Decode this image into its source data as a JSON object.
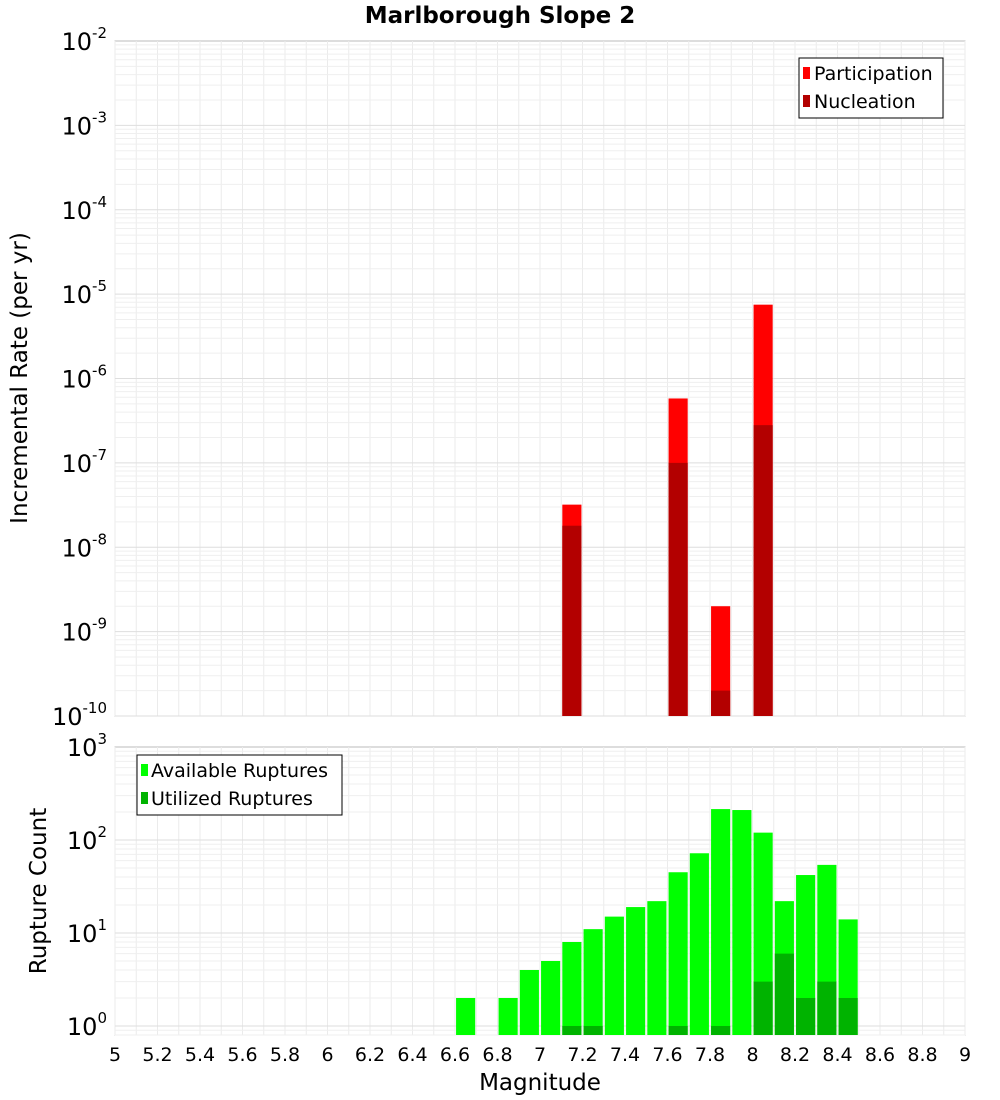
{
  "chart_data": [
    {
      "type": "bar",
      "title": "Marlborough Slope 2",
      "ylabel": "Incremental Rate (per yr)",
      "xlabel": "",
      "xlim": [
        5,
        9
      ],
      "ylim": [
        1e-10,
        0.01
      ],
      "yscale": "log",
      "ytick_exponents": [
        -10,
        -9,
        -8,
        -7,
        -6,
        -5,
        -4,
        -3,
        -2
      ],
      "grid": true,
      "legend_position": "top-right",
      "bar_width": 0.09,
      "series": [
        {
          "name": "Participation",
          "color": "#ff0000",
          "x": [
            7.15,
            7.65,
            7.85,
            8.05
          ],
          "values": [
            3.2e-08,
            5.8e-07,
            2e-09,
            7.5e-06
          ]
        },
        {
          "name": "Nucleation",
          "color": "#b30000",
          "x": [
            7.15,
            7.65,
            7.85,
            8.05
          ],
          "values": [
            1.8e-08,
            1e-07,
            2e-10,
            2.8e-07
          ]
        }
      ]
    },
    {
      "type": "bar",
      "title": "",
      "ylabel": "Rupture Count",
      "xlabel": "Magnitude",
      "xlim": [
        5,
        9
      ],
      "ylim": [
        0.8,
        1000
      ],
      "yscale": "log",
      "ytick_exponents": [
        0,
        1,
        2,
        3
      ],
      "xticks": [
        "5",
        "5.2",
        "5.4",
        "5.6",
        "5.8",
        "6",
        "6.2",
        "6.4",
        "6.6",
        "6.8",
        "7",
        "7.2",
        "7.4",
        "7.6",
        "7.8",
        "8",
        "8.2",
        "8.4",
        "8.6",
        "8.8",
        "9"
      ],
      "grid": true,
      "legend_position": "top-left",
      "bar_width": 0.09,
      "series": [
        {
          "name": "Available Ruptures",
          "color": "#00ff00",
          "x": [
            6.65,
            6.85,
            6.95,
            7.05,
            7.15,
            7.25,
            7.35,
            7.45,
            7.55,
            7.65,
            7.75,
            7.85,
            7.95,
            8.05,
            8.15,
            8.25,
            8.35,
            8.45
          ],
          "values": [
            2,
            2,
            4,
            5,
            8,
            11,
            15,
            19,
            22,
            45,
            72,
            215,
            210,
            120,
            22,
            42,
            54,
            14
          ]
        },
        {
          "name": "Utilized Ruptures",
          "color": "#00b300",
          "x": [
            7.15,
            7.25,
            7.65,
            7.85,
            8.05,
            8.15,
            8.25,
            8.35,
            8.45
          ],
          "values": [
            1,
            1,
            1,
            1,
            3,
            6,
            2,
            3,
            2
          ]
        }
      ]
    }
  ]
}
